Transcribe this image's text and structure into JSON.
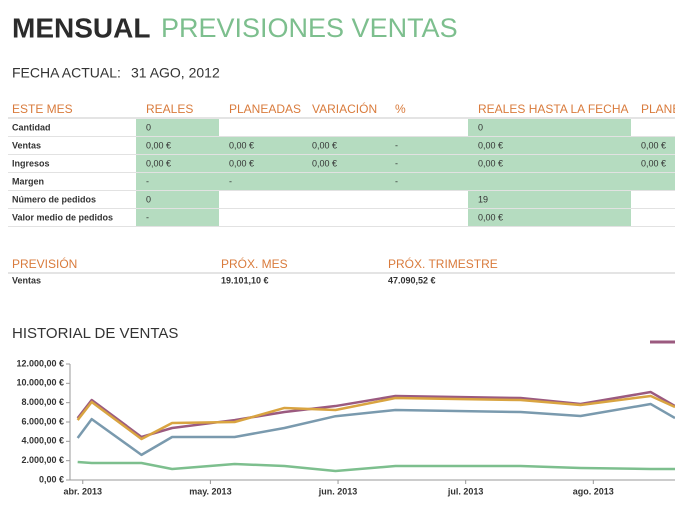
{
  "header": {
    "title_bold": "MENSUAL",
    "title_light": "PREVISIONES VENTAS",
    "date_label": "FECHA ACTUAL:",
    "date_value": "31 AGO, 2012"
  },
  "table": {
    "columns": [
      "ESTE MES",
      "REALES",
      "PLANEADAS",
      "VARIACIÓN",
      "%",
      "REALES HASTA LA FECHA",
      "PLANE"
    ],
    "rows": [
      [
        "Cantidad",
        "0",
        null,
        null,
        null,
        "0",
        null
      ],
      [
        "Ventas",
        "0,00 €",
        "0,00 €",
        "0,00 €",
        "-",
        "0,00 €",
        "0,00 €"
      ],
      [
        "Ingresos",
        "0,00 €",
        "0,00 €",
        "0,00 €",
        "-",
        "0,00 €",
        "0,00 €"
      ],
      [
        "Margen",
        "-",
        "-",
        null,
        "-",
        null,
        null
      ],
      [
        "Número de pedidos",
        "0",
        null,
        null,
        null,
        "19",
        null
      ],
      [
        "Valor medio de pedidos",
        "-",
        null,
        null,
        null,
        "0,00 €",
        null
      ]
    ]
  },
  "forecast": {
    "columns": [
      "PREVISIÓN",
      "PRÓX. MES",
      "PRÓX. TRIMESTRE"
    ],
    "rows": [
      [
        "Ventas",
        "19.101,10 €",
        "47.090,52 €"
      ]
    ]
  },
  "chart_data": {
    "type": "line",
    "title": "HISTORIAL DE VENTAS",
    "x": [
      -0.04,
      0.07,
      0.46,
      0.7,
      1.19,
      1.58,
      1.98,
      2.45,
      3.43,
      3.9,
      4.45,
      4.64
    ],
    "xlim": [
      -0.1,
      4.64
    ],
    "xticks": [
      {
        "value": 0,
        "label": "abr. 2013"
      },
      {
        "value": 1,
        "label": "may. 2013"
      },
      {
        "value": 2,
        "label": "jun. 2013"
      },
      {
        "value": 3,
        "label": "jul. 2013"
      },
      {
        "value": 4,
        "label": "ago. 2013"
      }
    ],
    "ylim": [
      0,
      12000
    ],
    "yticks": [
      {
        "value": 0,
        "label": "0,00 €"
      },
      {
        "value": 2000,
        "label": "2.000,00 €"
      },
      {
        "value": 4000,
        "label": "4.000,00 €"
      },
      {
        "value": 6000,
        "label": "6.000,00 €"
      },
      {
        "value": 8000,
        "label": "8.000,00 €"
      },
      {
        "value": 10000,
        "label": "10.000,00 €"
      },
      {
        "value": 12000,
        "label": "12.000,00 €"
      }
    ],
    "series": [
      {
        "color": "#7a9aae",
        "values": [
          4340,
          6300,
          2600,
          4450,
          4450,
          5380,
          6600,
          7240,
          7030,
          6620,
          7860,
          6410
        ]
      },
      {
        "color": "#9b5a7f",
        "values": [
          6400,
          8270,
          4450,
          5380,
          6200,
          7030,
          7650,
          8690,
          8480,
          7860,
          9100,
          7650
        ]
      },
      {
        "color": "#d9a441",
        "values": [
          6200,
          8070,
          4240,
          5900,
          6000,
          7450,
          7240,
          8480,
          8270,
          7760,
          8690,
          7550
        ]
      },
      {
        "color": "#7dbf8e",
        "values": [
          1860,
          1760,
          1760,
          1140,
          1650,
          1450,
          930,
          1450,
          1450,
          1240,
          1140,
          1140
        ]
      }
    ]
  }
}
